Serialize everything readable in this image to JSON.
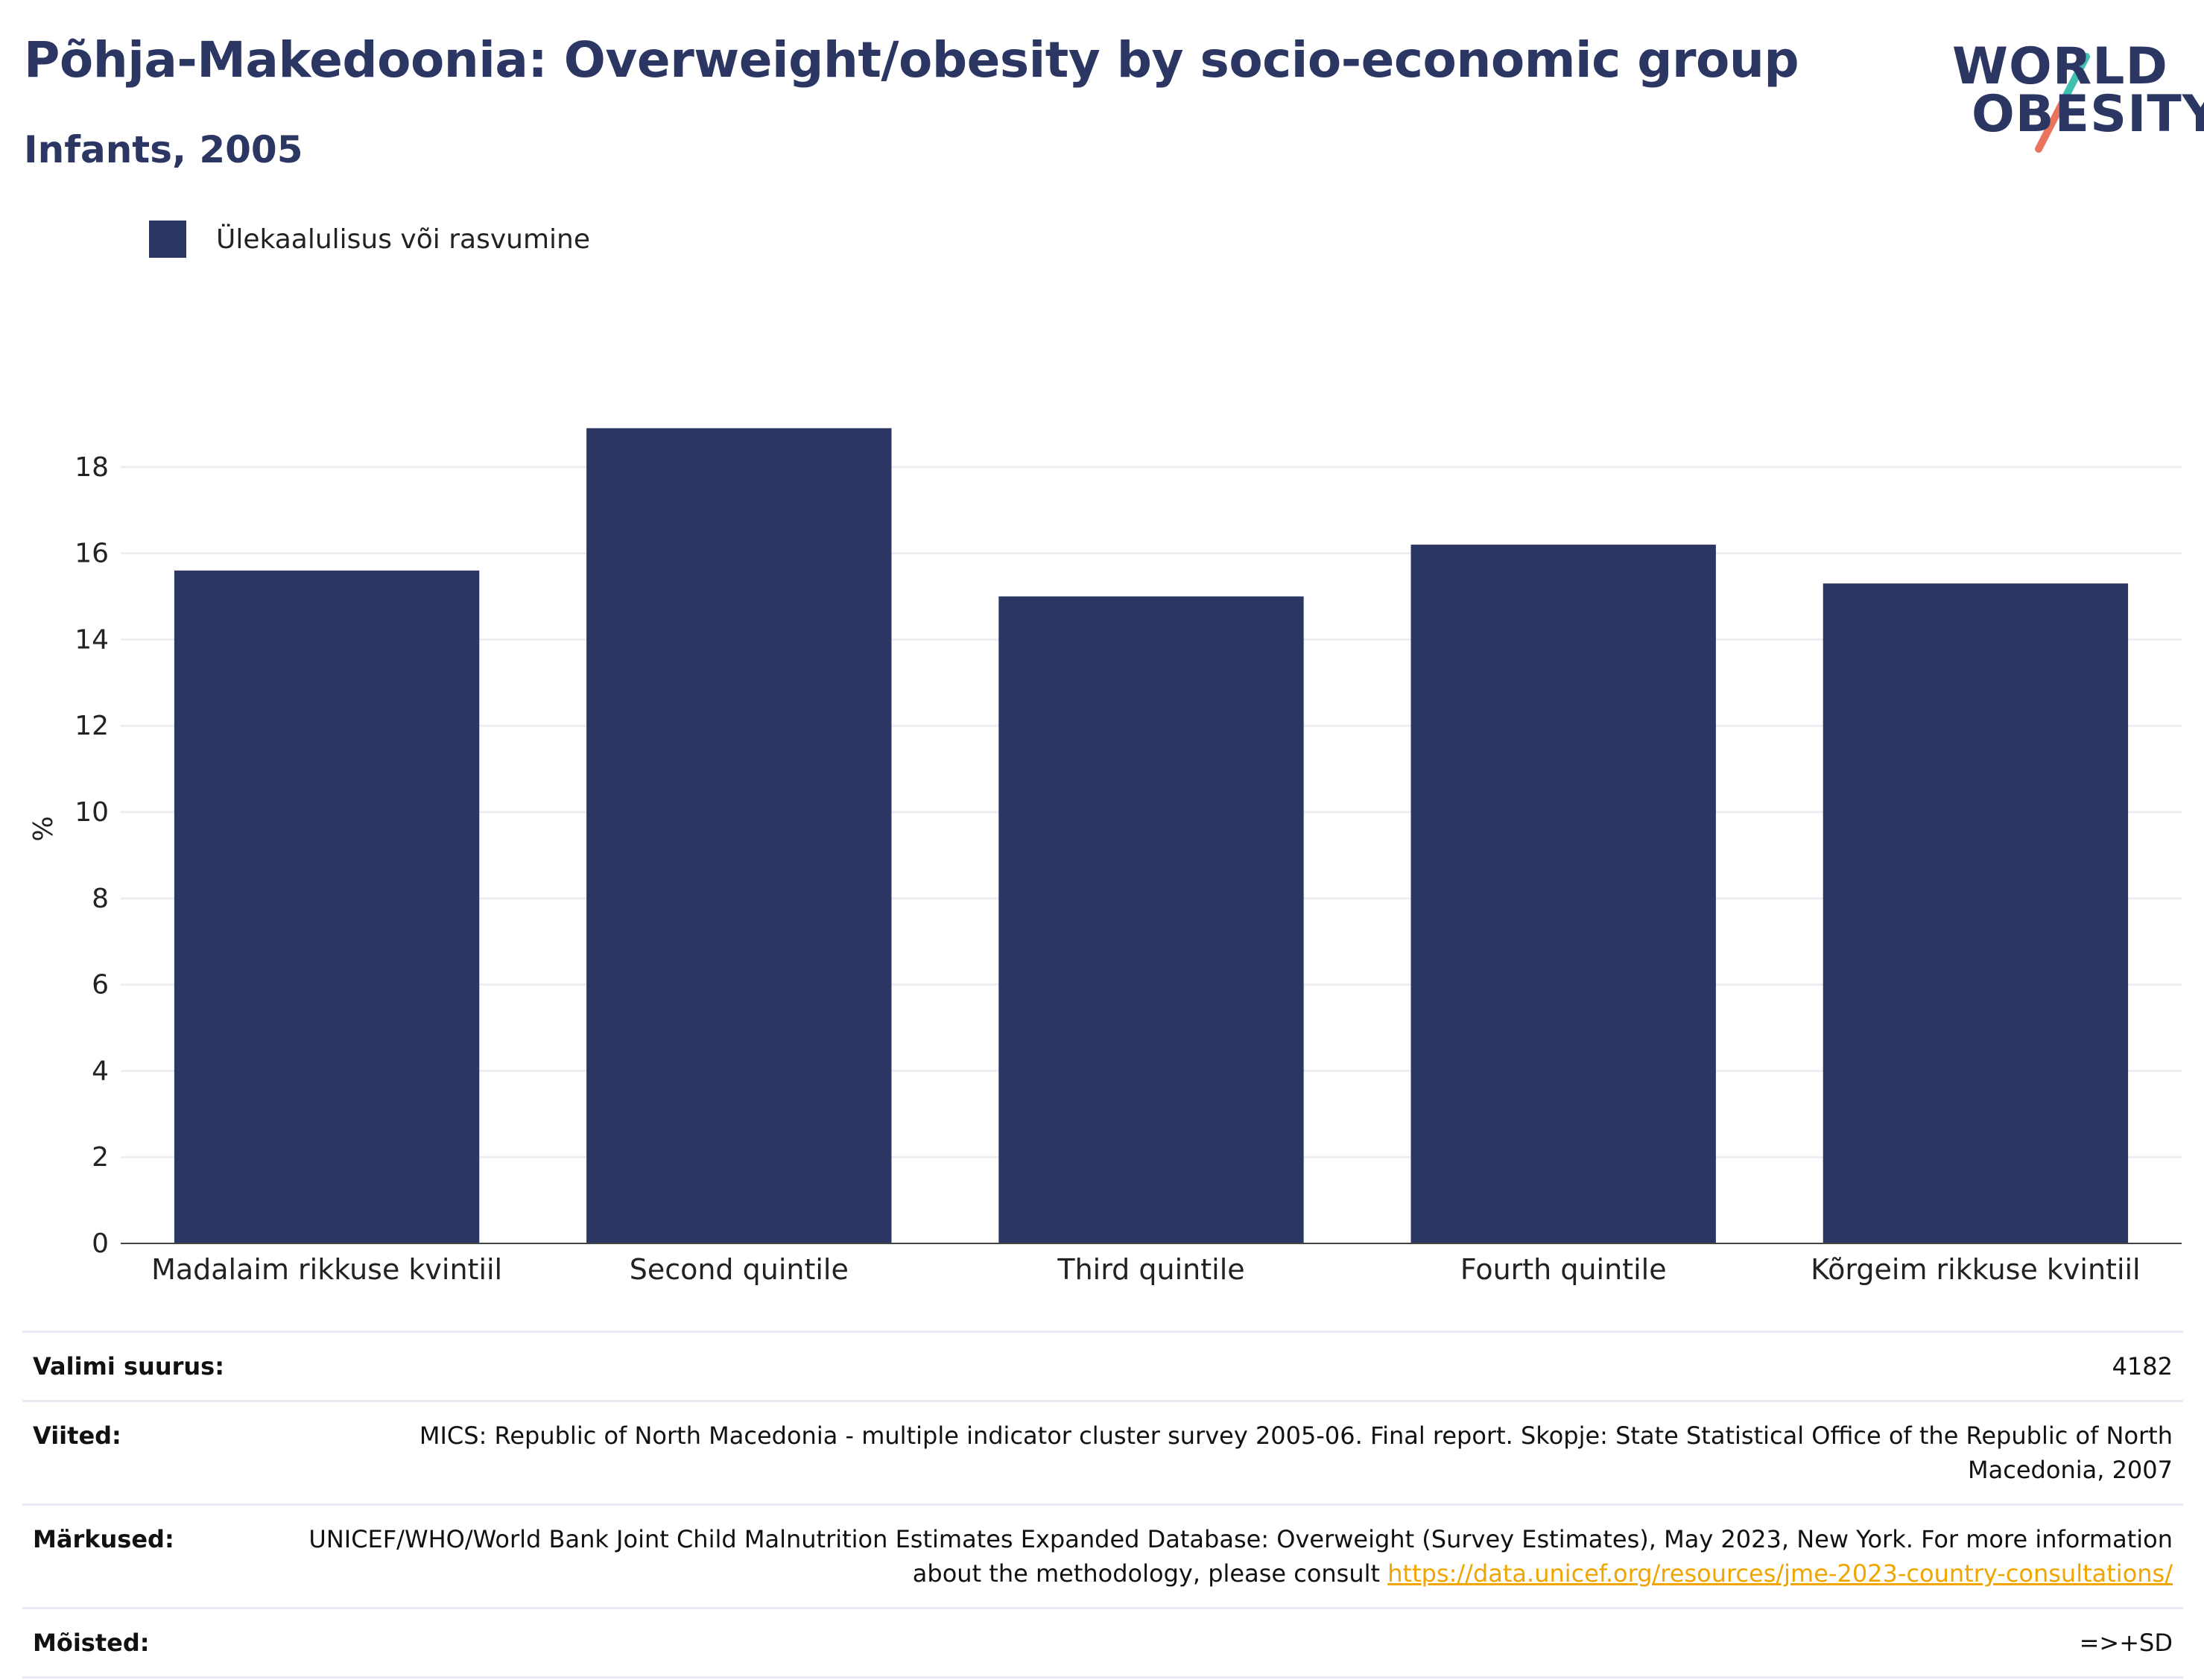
{
  "header": {
    "title": "Põhja-Makedoonia: Overweight/obesity by socio-economic group",
    "subtitle": "Infants, 2005"
  },
  "logo": {
    "line1": "WORLD",
    "line2": "OBESITY"
  },
  "legend": {
    "label": "Ülekaalulisus või rasvumine",
    "color": "#2b3663"
  },
  "chart_data": {
    "type": "bar",
    "categories": [
      "Madalaim rikkuse kvintiil",
      "Second quintile",
      "Third quintile",
      "Fourth quintile",
      "Kõrgeim rikkuse kvintiil"
    ],
    "series": [
      {
        "name": "Ülekaalulisus või rasvumine",
        "values": [
          15.6,
          18.9,
          15.0,
          16.2,
          15.3
        ],
        "color": "#2b3663"
      }
    ],
    "xlabel": "",
    "ylabel": "%",
    "ylim": [
      0,
      19.5
    ],
    "yticks": [
      0,
      2,
      4,
      6,
      8,
      10,
      12,
      14,
      16,
      18
    ],
    "grid": true,
    "legend_position": "top-left"
  },
  "footer": {
    "rows": [
      {
        "key": "Valimi suurus:",
        "value": "4182"
      },
      {
        "key": "Viited:",
        "value": "MICS: Republic of North Macedonia - multiple indicator cluster survey 2005-06. Final report. Skopje: State Statistical Office of the Republic of North Macedonia, 2007"
      },
      {
        "key": "Märkused:",
        "value": "UNICEF/WHO/World Bank Joint Child Malnutrition Estimates Expanded Database: Overweight (Survey Estimates), May 2023, New York. For more information about the methodology, please consult ",
        "link": "https://data.unicef.org/resources/jme-2023-country-consultations/"
      },
      {
        "key": "Mõisted:",
        "value": "=>+SD"
      }
    ]
  },
  "colors": {
    "accent": "#2b3663",
    "link": "#f0a500",
    "logo_teal": "#3fbfb0",
    "logo_coral": "#e8735e"
  }
}
